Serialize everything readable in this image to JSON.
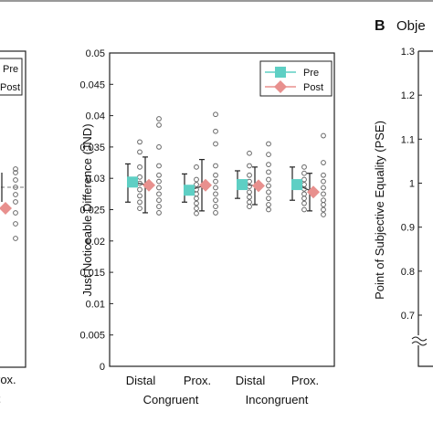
{
  "figure": {
    "panel_b_letter": "B",
    "panel_b_title_partial": "Obje",
    "left_partial_cats": [
      "rox."
    ],
    "left_partial_group": "t",
    "colors": {
      "pre": "#5ecfc4",
      "post": "#e8908e",
      "dots": "#666666",
      "axis": "#222222",
      "dashed": "#777777"
    }
  },
  "chart_data": [
    {
      "type": "scatter",
      "panel": "left (cropped)",
      "legend": [
        "Pre",
        "Post"
      ],
      "series": [
        {
          "name": "Post",
          "x": [
            "Prox."
          ],
          "mean": [
            1.0
          ],
          "err_low": [
            0.96
          ],
          "err_high": [
            1.04
          ],
          "points": [
            0.86,
            0.9,
            0.93,
            0.96,
            0.98,
            1.0,
            1.02,
            1.04,
            1.05
          ]
        }
      ],
      "reference_line": 1.0
    },
    {
      "type": "scatter",
      "title": "",
      "xlabel": "",
      "ylabel": "Just Noticeable Difference (JND)",
      "ylim": [
        0,
        0.05
      ],
      "yticks": [
        "0",
        "0.005",
        "0.01",
        "0.015",
        "0.02",
        "0.025",
        "0.03",
        "0.035",
        "0.04",
        "0.045",
        "0.05"
      ],
      "categories": [
        "Distal",
        "Prox.",
        "Distal",
        "Prox."
      ],
      "groups": [
        {
          "label": "Congruent",
          "categories": [
            0,
            1
          ]
        },
        {
          "label": "Incongruent",
          "categories": [
            2,
            3
          ]
        }
      ],
      "legend": [
        "Pre",
        "Post"
      ],
      "legend_position": "top-right",
      "series": [
        {
          "name": "Pre",
          "mean": [
            0.0294,
            0.0281,
            0.029,
            0.029
          ],
          "err_low": [
            0.0262,
            0.0262,
            0.0268,
            0.0265
          ],
          "err_high": [
            0.0323,
            0.0307,
            0.0312,
            0.0318
          ],
          "points": [
            [
              0.0358,
              0.0342,
              0.0318,
              0.0302,
              0.0292,
              0.0282,
              0.0272,
              0.0262,
              0.0252
            ],
            [
              0.0318,
              0.0298,
              0.029,
              0.0282,
              0.0275,
              0.0268,
              0.026,
              0.0252,
              0.0244
            ],
            [
              0.034,
              0.032,
              0.0305,
              0.0295,
              0.0287,
              0.0278,
              0.027,
              0.0262,
              0.0255
            ],
            [
              0.0318,
              0.0308,
              0.0298,
              0.029,
              0.0283,
              0.0275,
              0.0268,
              0.026,
              0.025
            ]
          ]
        },
        {
          "name": "Post",
          "mean": [
            0.0289,
            0.0289,
            0.0288,
            0.0278
          ],
          "err_low": [
            0.0245,
            0.0248,
            0.0258,
            0.0248
          ],
          "err_high": [
            0.0334,
            0.033,
            0.0318,
            0.0308
          ],
          "points": [
            [
              0.0395,
              0.0385,
              0.035,
              0.032,
              0.0305,
              0.0295,
              0.0285,
              0.0275,
              0.0265,
              0.0255,
              0.0245
            ],
            [
              0.0402,
              0.0375,
              0.0355,
              0.032,
              0.0305,
              0.0295,
              0.0285,
              0.0275,
              0.0265,
              0.0255,
              0.0245
            ],
            [
              0.0355,
              0.0338,
              0.0322,
              0.031,
              0.0298,
              0.0288,
              0.0278,
              0.0268,
              0.0258,
              0.025
            ],
            [
              0.0368,
              0.0325,
              0.0305,
              0.0295,
              0.0285,
              0.0275,
              0.0265,
              0.0258,
              0.025,
              0.0242
            ]
          ]
        }
      ]
    },
    {
      "type": "scatter",
      "panel": "B (cropped)",
      "ylabel": "Point of Subjective Equality (PSE)",
      "ylim": [
        0.65,
        1.3
      ],
      "yticks": [
        "0.7",
        "0.8",
        "0.9",
        "1",
        "1.1",
        "1.2",
        "1.3"
      ],
      "axis_break": true
    }
  ]
}
